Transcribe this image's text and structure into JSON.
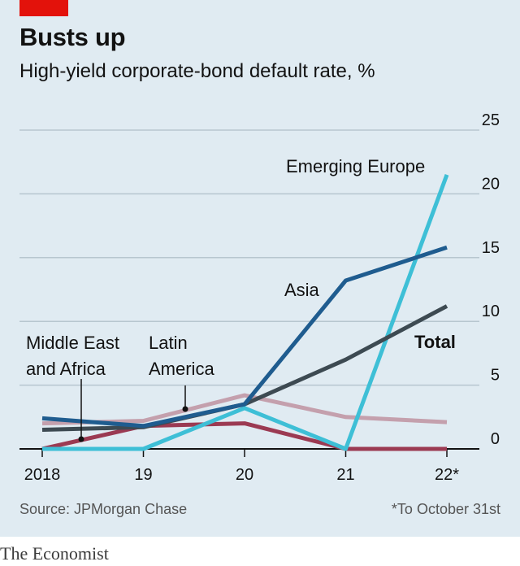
{
  "header": {
    "title": "Busts up",
    "subtitle": "High-yield corporate-bond default rate, %"
  },
  "footer": {
    "source": "Source: JPMorgan Chase",
    "footnote": "*To October 31st",
    "brand": "The Economist"
  },
  "colors": {
    "panel": "#e0ebf2",
    "accent": "#e3120b",
    "asia": "#1f5c8f",
    "emerging_europe": "#3ebfd6",
    "total": "#3d4a52",
    "latin_america": "#c4a0ad",
    "middle_east_africa": "#9b3a52"
  },
  "chart_data": {
    "type": "line",
    "x": [
      2018,
      2019,
      2020,
      2021,
      2022
    ],
    "x_tick_labels": [
      "2018",
      "19",
      "20",
      "21",
      "22*"
    ],
    "ylim": [
      0,
      25
    ],
    "y_ticks": [
      0,
      5,
      10,
      15,
      20,
      25
    ],
    "grid": true,
    "y_axis_side": "right",
    "series": [
      {
        "key": "latin_america",
        "name": "Latin America",
        "label_lines": [
          "Latin",
          "America"
        ],
        "values": [
          2.0,
          2.2,
          4.2,
          2.5,
          2.1
        ]
      },
      {
        "key": "middle_east_africa",
        "name": "Middle East and Africa",
        "label_lines": [
          "Middle East",
          "and Africa"
        ],
        "values": [
          0.0,
          1.8,
          2.0,
          0.0,
          0.0
        ]
      },
      {
        "key": "emerging_europe",
        "name": "Emerging Europe",
        "label_lines": [
          "Emerging Europe"
        ],
        "values": [
          0.0,
          0.0,
          3.2,
          0.0,
          21.5
        ]
      },
      {
        "key": "total",
        "name": "Total",
        "label_lines": [
          "Total"
        ],
        "values": [
          1.5,
          1.7,
          3.5,
          7.0,
          11.2
        ]
      },
      {
        "key": "asia",
        "name": "Asia",
        "label_lines": [
          "Asia"
        ],
        "values": [
          2.4,
          1.8,
          3.5,
          13.2,
          15.8
        ]
      }
    ]
  }
}
